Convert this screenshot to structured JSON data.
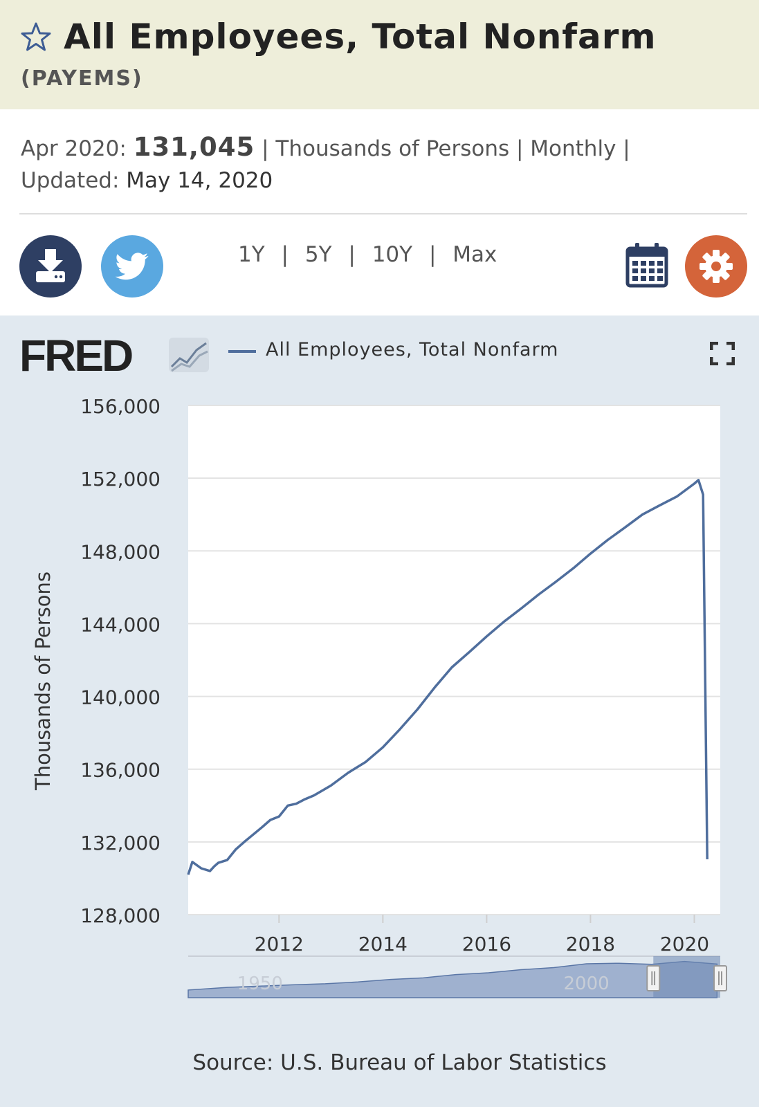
{
  "header": {
    "title": "All Employees, Total Nonfarm",
    "series_id": "(PAYEMS)"
  },
  "meta": {
    "date_label": "Apr 2020:",
    "value": "131,045",
    "sep1": "|",
    "units": "Thousands of Persons",
    "sep2": "|",
    "frequency": "Monthly",
    "sep3": "|",
    "updated_label": "Updated:",
    "updated_date": "May 14, 2020"
  },
  "toolbar": {
    "ranges": [
      "1Y",
      "5Y",
      "10Y",
      "Max"
    ],
    "separator": "|"
  },
  "icons": {
    "star": "star-icon",
    "download": "download-icon",
    "twitter": "twitter-icon",
    "calendar": "calendar-icon",
    "settings": "gear-icon",
    "fullscreen": "fullscreen-icon",
    "logo": "fred-logo"
  },
  "colors": {
    "header_bg": "#eeeeda",
    "panel_bg": "#e1e9f0",
    "series": "#4f6e9d",
    "download_btn": "#2e3f63",
    "twitter_btn": "#5aa8e0",
    "settings_btn": "#d4643a"
  },
  "logo": {
    "text": "FRED"
  },
  "legend": {
    "label": "All Employees, Total Nonfarm"
  },
  "source": "Source: U.S. Bureau of Labor Statistics",
  "chart_data": {
    "type": "line",
    "title": "All Employees, Total Nonfarm",
    "xlabel": "",
    "ylabel": "Thousands of Persons",
    "xlim": [
      2010.25,
      2020.5
    ],
    "ylim": [
      128000,
      156000
    ],
    "yticks": [
      128000,
      132000,
      136000,
      140000,
      144000,
      148000,
      152000,
      156000
    ],
    "ytick_labels": [
      "128,000",
      "132,000",
      "136,000",
      "140,000",
      "144,000",
      "148,000",
      "152,000",
      "156,000"
    ],
    "xticks": [
      2012,
      2014,
      2016,
      2018,
      2020
    ],
    "xtick_labels": [
      "2012",
      "2014",
      "2016",
      "2018",
      "2020"
    ],
    "grid": true,
    "series": [
      {
        "name": "All Employees, Total Nonfarm",
        "x": [
          2010.25,
          2010.33,
          2010.5,
          2010.67,
          2010.75,
          2010.83,
          2011.0,
          2011.17,
          2011.33,
          2011.5,
          2011.67,
          2011.83,
          2012.0,
          2012.17,
          2012.33,
          2012.5,
          2012.67,
          2013.0,
          2013.33,
          2013.67,
          2014.0,
          2014.33,
          2014.67,
          2015.0,
          2015.33,
          2015.67,
          2016.0,
          2016.33,
          2016.67,
          2017.0,
          2017.33,
          2017.67,
          2018.0,
          2018.33,
          2018.67,
          2019.0,
          2019.33,
          2019.67,
          2020.0,
          2020.08,
          2020.17,
          2020.25
        ],
        "values": [
          130200,
          130900,
          130550,
          130400,
          130650,
          130850,
          131000,
          131600,
          132000,
          132400,
          132800,
          133200,
          133400,
          134000,
          134100,
          134350,
          134550,
          135100,
          135800,
          136400,
          137200,
          138200,
          139300,
          140500,
          141600,
          142450,
          143300,
          144100,
          144850,
          145600,
          146300,
          147050,
          147850,
          148600,
          149300,
          150000,
          150500,
          151000,
          151700,
          151900,
          151100,
          131045
        ]
      }
    ],
    "navigator": {
      "labels": [
        "1950",
        "2000"
      ],
      "series": {
        "x": [
          1939,
          1945,
          1950,
          1955,
          1960,
          1965,
          1970,
          1975,
          1980,
          1985,
          1990,
          1995,
          2000,
          2005,
          2010,
          2015,
          2020
        ],
        "values": [
          30000,
          40000,
          45000,
          50000,
          54000,
          61000,
          71000,
          77000,
          90000,
          97000,
          109000,
          117000,
          132000,
          134000,
          130000,
          141000,
          131000
        ]
      },
      "range": [
        1939,
        2020.5
      ],
      "selected": [
        2010.25,
        2020.5
      ]
    }
  }
}
